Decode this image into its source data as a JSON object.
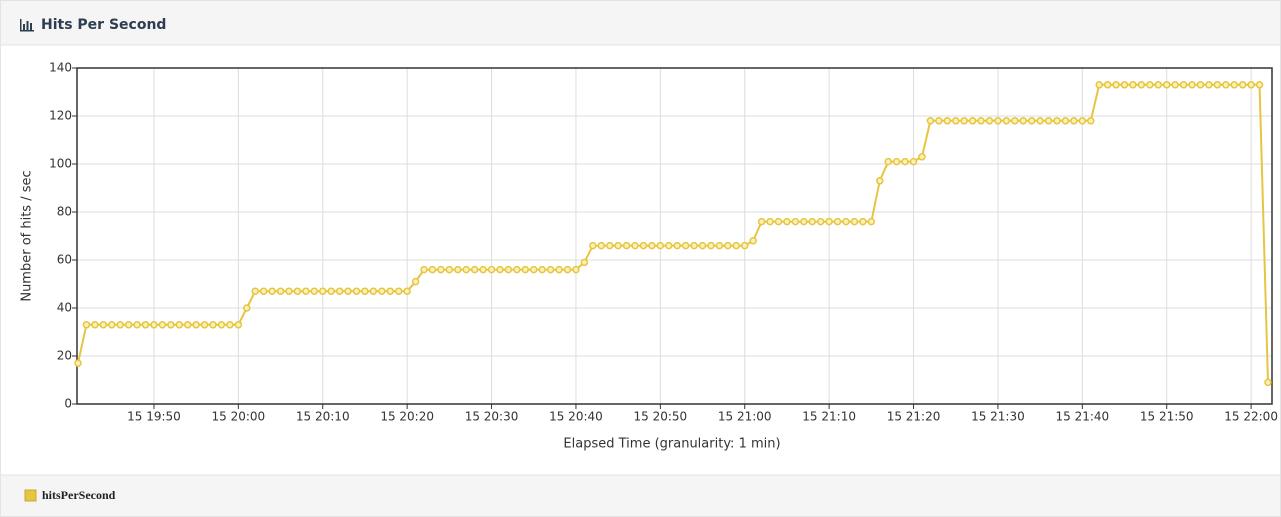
{
  "chart_data": {
    "type": "line",
    "title": "Hits Per Second",
    "x_label": "Elapsed Time (granularity: 1 min)",
    "y_label": "Number of hits / sec",
    "x": [
      "15 19:41",
      "15 19:42",
      "15 19:43",
      "15 19:44",
      "15 19:45",
      "15 19:46",
      "15 19:47",
      "15 19:48",
      "15 19:49",
      "15 19:50",
      "15 19:51",
      "15 19:52",
      "15 19:53",
      "15 19:54",
      "15 19:55",
      "15 19:56",
      "15 19:57",
      "15 19:58",
      "15 19:59",
      "15 20:00",
      "15 20:01",
      "15 20:02",
      "15 20:03",
      "15 20:04",
      "15 20:05",
      "15 20:06",
      "15 20:07",
      "15 20:08",
      "15 20:09",
      "15 20:10",
      "15 20:11",
      "15 20:12",
      "15 20:13",
      "15 20:14",
      "15 20:15",
      "15 20:16",
      "15 20:17",
      "15 20:18",
      "15 20:19",
      "15 20:20",
      "15 20:21",
      "15 20:22",
      "15 20:23",
      "15 20:24",
      "15 20:25",
      "15 20:26",
      "15 20:27",
      "15 20:28",
      "15 20:29",
      "15 20:30",
      "15 20:31",
      "15 20:32",
      "15 20:33",
      "15 20:34",
      "15 20:35",
      "15 20:36",
      "15 20:37",
      "15 20:38",
      "15 20:39",
      "15 20:40",
      "15 20:41",
      "15 20:42",
      "15 20:43",
      "15 20:44",
      "15 20:45",
      "15 20:46",
      "15 20:47",
      "15 20:48",
      "15 20:49",
      "15 20:50",
      "15 20:51",
      "15 20:52",
      "15 20:53",
      "15 20:54",
      "15 20:55",
      "15 20:56",
      "15 20:57",
      "15 20:58",
      "15 20:59",
      "15 21:00",
      "15 21:01",
      "15 21:02",
      "15 21:03",
      "15 21:04",
      "15 21:05",
      "15 21:06",
      "15 21:07",
      "15 21:08",
      "15 21:09",
      "15 21:10",
      "15 21:11",
      "15 21:12",
      "15 21:13",
      "15 21:14",
      "15 21:15",
      "15 21:16",
      "15 21:17",
      "15 21:18",
      "15 21:19",
      "15 21:20",
      "15 21:21",
      "15 21:22",
      "15 21:23",
      "15 21:24",
      "15 21:25",
      "15 21:26",
      "15 21:27",
      "15 21:28",
      "15 21:29",
      "15 21:30",
      "15 21:31",
      "15 21:32",
      "15 21:33",
      "15 21:34",
      "15 21:35",
      "15 21:36",
      "15 21:37",
      "15 21:38",
      "15 21:39",
      "15 21:40",
      "15 21:41",
      "15 21:42",
      "15 21:43",
      "15 21:44",
      "15 21:45",
      "15 21:46",
      "15 21:47",
      "15 21:48",
      "15 21:49",
      "15 21:50",
      "15 21:51",
      "15 21:52",
      "15 21:53",
      "15 21:54",
      "15 21:55",
      "15 21:56",
      "15 21:57",
      "15 21:58",
      "15 21:59",
      "15 22:00",
      "15 22:01",
      "15 22:02"
    ],
    "series": [
      {
        "name": "hitsPerSecond",
        "color": "#e6c542",
        "values": [
          17,
          33,
          33,
          33,
          33,
          33,
          33,
          33,
          33,
          33,
          33,
          33,
          33,
          33,
          33,
          33,
          33,
          33,
          33,
          33,
          40,
          47,
          47,
          47,
          47,
          47,
          47,
          47,
          47,
          47,
          47,
          47,
          47,
          47,
          47,
          47,
          47,
          47,
          47,
          47,
          51,
          56,
          56,
          56,
          56,
          56,
          56,
          56,
          56,
          56,
          56,
          56,
          56,
          56,
          56,
          56,
          56,
          56,
          56,
          56,
          59,
          66,
          66,
          66,
          66,
          66,
          66,
          66,
          66,
          66,
          66,
          66,
          66,
          66,
          66,
          66,
          66,
          66,
          66,
          66,
          68,
          76,
          76,
          76,
          76,
          76,
          76,
          76,
          76,
          76,
          76,
          76,
          76,
          76,
          76,
          93,
          101,
          101,
          101,
          101,
          103,
          118,
          118,
          118,
          118,
          118,
          118,
          118,
          118,
          118,
          118,
          118,
          118,
          118,
          118,
          118,
          118,
          118,
          118,
          118,
          118,
          133,
          133,
          133,
          133,
          133,
          133,
          133,
          133,
          133,
          133,
          133,
          133,
          133,
          133,
          133,
          133,
          133,
          133,
          133,
          133,
          9
        ]
      }
    ],
    "xlim": [
      "15 19:41",
      "15 22:02"
    ],
    "xticks": [
      "15 19:50",
      "15 20:00",
      "15 20:10",
      "15 20:20",
      "15 20:30",
      "15 20:40",
      "15 20:50",
      "15 21:00",
      "15 21:10",
      "15 21:20",
      "15 21:30",
      "15 21:40",
      "15 21:50",
      "15 22:00"
    ],
    "ylim": [
      0,
      140
    ],
    "yticks": [
      0,
      20,
      40,
      60,
      80,
      100,
      120,
      140
    ],
    "grid": true,
    "legend": "bottom-left"
  }
}
